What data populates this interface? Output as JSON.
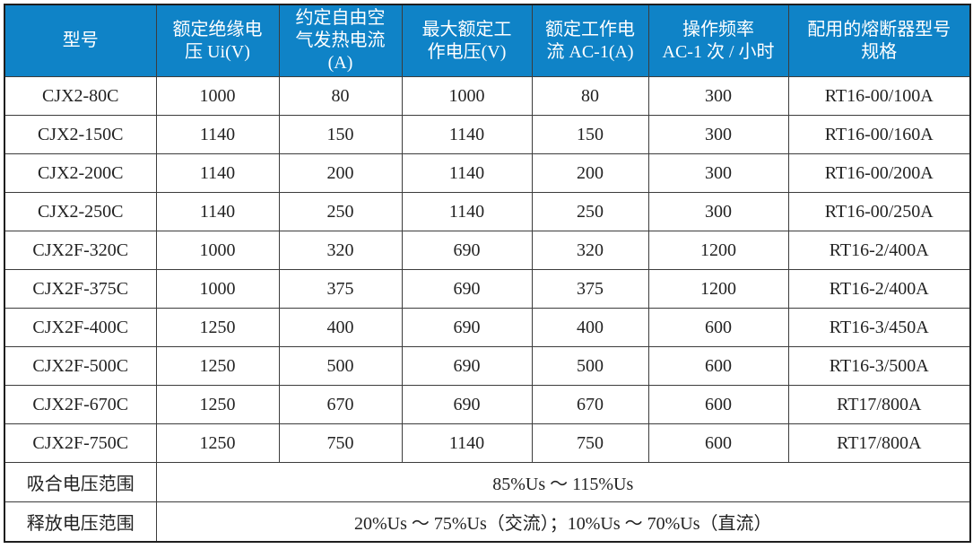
{
  "colors": {
    "header_bg": "#0f83c7",
    "header_text": "#ffffff",
    "grid_border": "#3c3c3c",
    "outer_border": "#1e1e1e",
    "body_text": "#222222",
    "faint_merged_divider": "#c9c9c9"
  },
  "table": {
    "columns": [
      {
        "id": "model",
        "label": "型号"
      },
      {
        "id": "rated-insulation-voltage",
        "label": "额定绝缘电\n压 Ui(V)"
      },
      {
        "id": "conventional-free-air-thermal-current",
        "label": "约定自由空\n气发热电流\n(A)"
      },
      {
        "id": "max-rated-operating-voltage",
        "label": "最大额定工\n作电压(V)"
      },
      {
        "id": "rated-operating-current-ac1",
        "label": "额定工作电\n流 AC-1(A)"
      },
      {
        "id": "operating-frequency",
        "label": "操作频率\nAC-1 次 / 小时"
      },
      {
        "id": "matching-fuse-model",
        "label": "配用的熔断器型号\n规格"
      }
    ],
    "rows": [
      [
        "CJX2-80C",
        "1000",
        "80",
        "1000",
        "80",
        "300",
        "RT16-00/100A"
      ],
      [
        "CJX2-150C",
        "1140",
        "150",
        "1140",
        "150",
        "300",
        "RT16-00/160A"
      ],
      [
        "CJX2-200C",
        "1140",
        "200",
        "1140",
        "200",
        "300",
        "RT16-00/200A"
      ],
      [
        "CJX2-250C",
        "1140",
        "250",
        "1140",
        "250",
        "300",
        "RT16-00/250A"
      ],
      [
        "CJX2F-320C",
        "1000",
        "320",
        "690",
        "320",
        "1200",
        "RT16-2/400A"
      ],
      [
        "CJX2F-375C",
        "1000",
        "375",
        "690",
        "375",
        "1200",
        "RT16-2/400A"
      ],
      [
        "CJX2F-400C",
        "1250",
        "400",
        "690",
        "400",
        "600",
        "RT16-3/450A"
      ],
      [
        "CJX2F-500C",
        "1250",
        "500",
        "690",
        "500",
        "600",
        "RT16-3/500A"
      ],
      [
        "CJX2F-670C",
        "1250",
        "670",
        "690",
        "670",
        "600",
        "RT17/800A"
      ],
      [
        "CJX2F-750C",
        "1250",
        "750",
        "1140",
        "750",
        "600",
        "RT17/800A"
      ]
    ],
    "footer_rows": [
      {
        "label": "吸合电压范围",
        "value": "85%Us ～ 115%Us"
      },
      {
        "label": "释放电压范围",
        "value": "20%Us ～ 75%Us（交流）；10%Us ～ 70%Us（直流）"
      }
    ]
  }
}
